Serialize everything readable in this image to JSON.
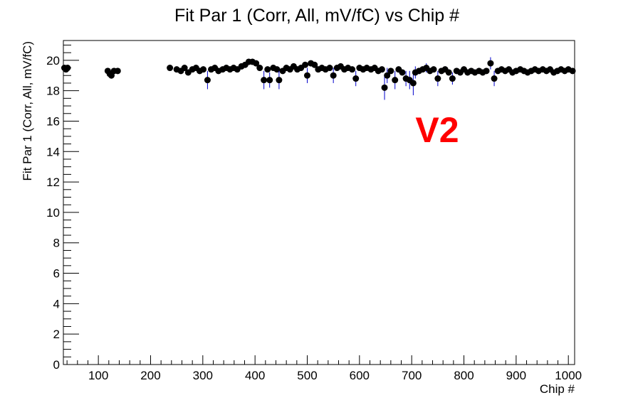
{
  "chart_data": {
    "type": "scatter",
    "title": "Fit Par 1 (Corr, All, mV/fC) vs Chip #",
    "xlabel": "Chip #",
    "ylabel": "Fit Par 1 (Corr, All, mV/fC)",
    "annotation": "V2",
    "annotation_color": "#ff0000",
    "marker_color": "#000000",
    "errorbar_color": "#0000cc",
    "xlim": [
      33,
      1012
    ],
    "ylim": [
      0,
      21.3
    ],
    "x_ticks": [
      100,
      200,
      300,
      400,
      500,
      600,
      700,
      800,
      900,
      1000
    ],
    "y_ticks": [
      0,
      2,
      4,
      6,
      8,
      10,
      12,
      14,
      16,
      18,
      20
    ],
    "grid": false,
    "legend": "none",
    "series": [
      {
        "points": [
          {
            "x": 35,
            "y": 19.5,
            "err": 0.15
          },
          {
            "x": 38,
            "y": 19.4,
            "err": 0.15
          },
          {
            "x": 41,
            "y": 19.5,
            "err": 0.15
          },
          {
            "x": 118,
            "y": 19.3,
            "err": 0.2
          },
          {
            "x": 122,
            "y": 19.1,
            "err": 0.2
          },
          {
            "x": 125,
            "y": 19.0,
            "err": 0.2
          },
          {
            "x": 130,
            "y": 19.3,
            "err": 0.2
          },
          {
            "x": 137,
            "y": 19.3,
            "err": 0.2
          },
          {
            "x": 237,
            "y": 19.5,
            "err": 0.15
          },
          {
            "x": 250,
            "y": 19.4,
            "err": 0.2
          },
          {
            "x": 258,
            "y": 19.3,
            "err": 0.2
          },
          {
            "x": 265,
            "y": 19.5,
            "err": 0.2
          },
          {
            "x": 272,
            "y": 19.2,
            "err": 0.2
          },
          {
            "x": 280,
            "y": 19.4,
            "err": 0.2
          },
          {
            "x": 287,
            "y": 19.5,
            "err": 0.2
          },
          {
            "x": 294,
            "y": 19.3,
            "err": 0.2
          },
          {
            "x": 301,
            "y": 19.4,
            "err": 0.2
          },
          {
            "x": 309,
            "y": 18.7,
            "err": 0.6
          },
          {
            "x": 316,
            "y": 19.4,
            "err": 0.2
          },
          {
            "x": 323,
            "y": 19.5,
            "err": 0.2
          },
          {
            "x": 330,
            "y": 19.3,
            "err": 0.2
          },
          {
            "x": 338,
            "y": 19.4,
            "err": 0.2
          },
          {
            "x": 345,
            "y": 19.5,
            "err": 0.2
          },
          {
            "x": 352,
            "y": 19.4,
            "err": 0.2
          },
          {
            "x": 359,
            "y": 19.5,
            "err": 0.2
          },
          {
            "x": 366,
            "y": 19.4,
            "err": 0.2
          },
          {
            "x": 374,
            "y": 19.6,
            "err": 0.2
          },
          {
            "x": 381,
            "y": 19.7,
            "err": 0.2
          },
          {
            "x": 388,
            "y": 19.9,
            "err": 0.2
          },
          {
            "x": 395,
            "y": 19.9,
            "err": 0.2
          },
          {
            "x": 402,
            "y": 19.8,
            "err": 0.2
          },
          {
            "x": 409,
            "y": 19.5,
            "err": 0.2
          },
          {
            "x": 417,
            "y": 18.7,
            "err": 0.6
          },
          {
            "x": 424,
            "y": 19.4,
            "err": 0.2
          },
          {
            "x": 428,
            "y": 18.7,
            "err": 0.5
          },
          {
            "x": 435,
            "y": 19.5,
            "err": 0.2
          },
          {
            "x": 442,
            "y": 19.4,
            "err": 0.2
          },
          {
            "x": 446,
            "y": 18.7,
            "err": 0.6
          },
          {
            "x": 453,
            "y": 19.3,
            "err": 0.2
          },
          {
            "x": 460,
            "y": 19.5,
            "err": 0.2
          },
          {
            "x": 467,
            "y": 19.4,
            "err": 0.2
          },
          {
            "x": 474,
            "y": 19.6,
            "err": 0.2
          },
          {
            "x": 481,
            "y": 19.4,
            "err": 0.2
          },
          {
            "x": 488,
            "y": 19.5,
            "err": 0.2
          },
          {
            "x": 496,
            "y": 19.7,
            "err": 0.2
          },
          {
            "x": 500,
            "y": 19.0,
            "err": 0.5
          },
          {
            "x": 507,
            "y": 19.8,
            "err": 0.2
          },
          {
            "x": 514,
            "y": 19.7,
            "err": 0.2
          },
          {
            "x": 521,
            "y": 19.4,
            "err": 0.2
          },
          {
            "x": 528,
            "y": 19.5,
            "err": 0.2
          },
          {
            "x": 535,
            "y": 19.4,
            "err": 0.2
          },
          {
            "x": 543,
            "y": 19.5,
            "err": 0.2
          },
          {
            "x": 550,
            "y": 19.0,
            "err": 0.5
          },
          {
            "x": 557,
            "y": 19.5,
            "err": 0.2
          },
          {
            "x": 564,
            "y": 19.6,
            "err": 0.2
          },
          {
            "x": 571,
            "y": 19.4,
            "err": 0.2
          },
          {
            "x": 578,
            "y": 19.5,
            "err": 0.2
          },
          {
            "x": 586,
            "y": 19.4,
            "err": 0.2
          },
          {
            "x": 593,
            "y": 18.8,
            "err": 0.5
          },
          {
            "x": 600,
            "y": 19.5,
            "err": 0.2
          },
          {
            "x": 607,
            "y": 19.4,
            "err": 0.2
          },
          {
            "x": 614,
            "y": 19.5,
            "err": 0.2
          },
          {
            "x": 622,
            "y": 19.4,
            "err": 0.2
          },
          {
            "x": 629,
            "y": 19.5,
            "err": 0.2
          },
          {
            "x": 636,
            "y": 19.3,
            "err": 0.2
          },
          {
            "x": 643,
            "y": 19.4,
            "err": 0.2
          },
          {
            "x": 648,
            "y": 18.2,
            "err": 0.8
          },
          {
            "x": 653,
            "y": 19.0,
            "err": 0.5
          },
          {
            "x": 660,
            "y": 19.3,
            "err": 0.2
          },
          {
            "x": 668,
            "y": 18.7,
            "err": 0.6
          },
          {
            "x": 675,
            "y": 19.4,
            "err": 0.2
          },
          {
            "x": 682,
            "y": 19.2,
            "err": 0.2
          },
          {
            "x": 689,
            "y": 18.8,
            "err": 0.5
          },
          {
            "x": 696,
            "y": 18.7,
            "err": 0.6
          },
          {
            "x": 703,
            "y": 18.5,
            "err": 0.8
          },
          {
            "x": 707,
            "y": 19.2,
            "err": 0.4
          },
          {
            "x": 714,
            "y": 19.3,
            "err": 0.2
          },
          {
            "x": 721,
            "y": 19.4,
            "err": 0.2
          },
          {
            "x": 728,
            "y": 19.5,
            "err": 0.3
          },
          {
            "x": 735,
            "y": 19.3,
            "err": 0.2
          },
          {
            "x": 742,
            "y": 19.4,
            "err": 0.2
          },
          {
            "x": 750,
            "y": 18.8,
            "err": 0.5
          },
          {
            "x": 757,
            "y": 19.3,
            "err": 0.2
          },
          {
            "x": 764,
            "y": 19.4,
            "err": 0.2
          },
          {
            "x": 771,
            "y": 19.2,
            "err": 0.2
          },
          {
            "x": 778,
            "y": 18.8,
            "err": 0.4
          },
          {
            "x": 786,
            "y": 19.3,
            "err": 0.2
          },
          {
            "x": 793,
            "y": 19.2,
            "err": 0.2
          },
          {
            "x": 800,
            "y": 19.4,
            "err": 0.2
          },
          {
            "x": 807,
            "y": 19.2,
            "err": 0.2
          },
          {
            "x": 814,
            "y": 19.3,
            "err": 0.2
          },
          {
            "x": 821,
            "y": 19.2,
            "err": 0.2
          },
          {
            "x": 829,
            "y": 19.3,
            "err": 0.2
          },
          {
            "x": 836,
            "y": 19.2,
            "err": 0.2
          },
          {
            "x": 843,
            "y": 19.3,
            "err": 0.2
          },
          {
            "x": 851,
            "y": 19.8,
            "err": 0.4
          },
          {
            "x": 858,
            "y": 18.8,
            "err": 0.5
          },
          {
            "x": 865,
            "y": 19.3,
            "err": 0.2
          },
          {
            "x": 872,
            "y": 19.4,
            "err": 0.2
          },
          {
            "x": 879,
            "y": 19.3,
            "err": 0.2
          },
          {
            "x": 886,
            "y": 19.4,
            "err": 0.2
          },
          {
            "x": 893,
            "y": 19.2,
            "err": 0.2
          },
          {
            "x": 900,
            "y": 19.3,
            "err": 0.2
          },
          {
            "x": 908,
            "y": 19.4,
            "err": 0.2
          },
          {
            "x": 915,
            "y": 19.3,
            "err": 0.2
          },
          {
            "x": 922,
            "y": 19.2,
            "err": 0.2
          },
          {
            "x": 929,
            "y": 19.3,
            "err": 0.2
          },
          {
            "x": 936,
            "y": 19.4,
            "err": 0.2
          },
          {
            "x": 943,
            "y": 19.3,
            "err": 0.2
          },
          {
            "x": 951,
            "y": 19.4,
            "err": 0.2
          },
          {
            "x": 958,
            "y": 19.3,
            "err": 0.2
          },
          {
            "x": 965,
            "y": 19.4,
            "err": 0.2
          },
          {
            "x": 972,
            "y": 19.2,
            "err": 0.2
          },
          {
            "x": 979,
            "y": 19.3,
            "err": 0.2
          },
          {
            "x": 986,
            "y": 19.4,
            "err": 0.2
          },
          {
            "x": 993,
            "y": 19.3,
            "err": 0.2
          },
          {
            "x": 1000,
            "y": 19.4,
            "err": 0.2
          },
          {
            "x": 1008,
            "y": 19.3,
            "err": 0.2
          }
        ]
      }
    ]
  }
}
